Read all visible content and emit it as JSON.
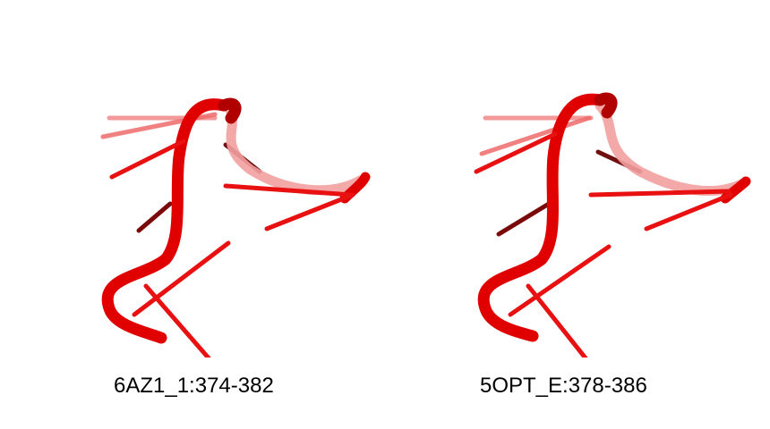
{
  "panels": [
    {
      "label": "6AZ1_1:374-382",
      "color": "#e00000"
    },
    {
      "label": "5OPT_E:378-386",
      "color": "#e00000"
    }
  ]
}
